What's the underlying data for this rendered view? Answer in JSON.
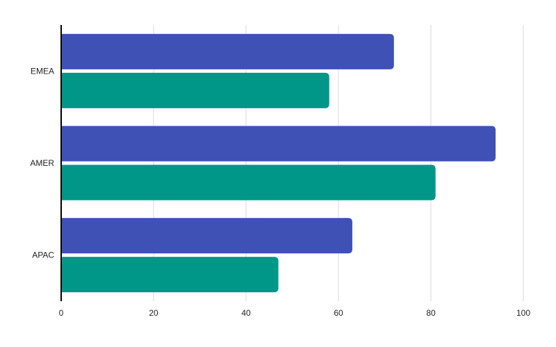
{
  "chart_data": {
    "type": "bar",
    "orientation": "horizontal",
    "categories": [
      "EMEA",
      "AMER",
      "APAC"
    ],
    "series": [
      {
        "values": [
          72,
          94,
          63
        ],
        "color": "#3f51b5"
      },
      {
        "values": [
          58,
          81,
          47
        ],
        "color": "#009688"
      }
    ],
    "xlim": [
      0,
      100
    ],
    "xticks": [
      "0",
      "20",
      "40",
      "60",
      "80",
      "100"
    ],
    "title": "",
    "xlabel": "",
    "ylabel": "",
    "grid": "vertical",
    "legend": "none"
  }
}
